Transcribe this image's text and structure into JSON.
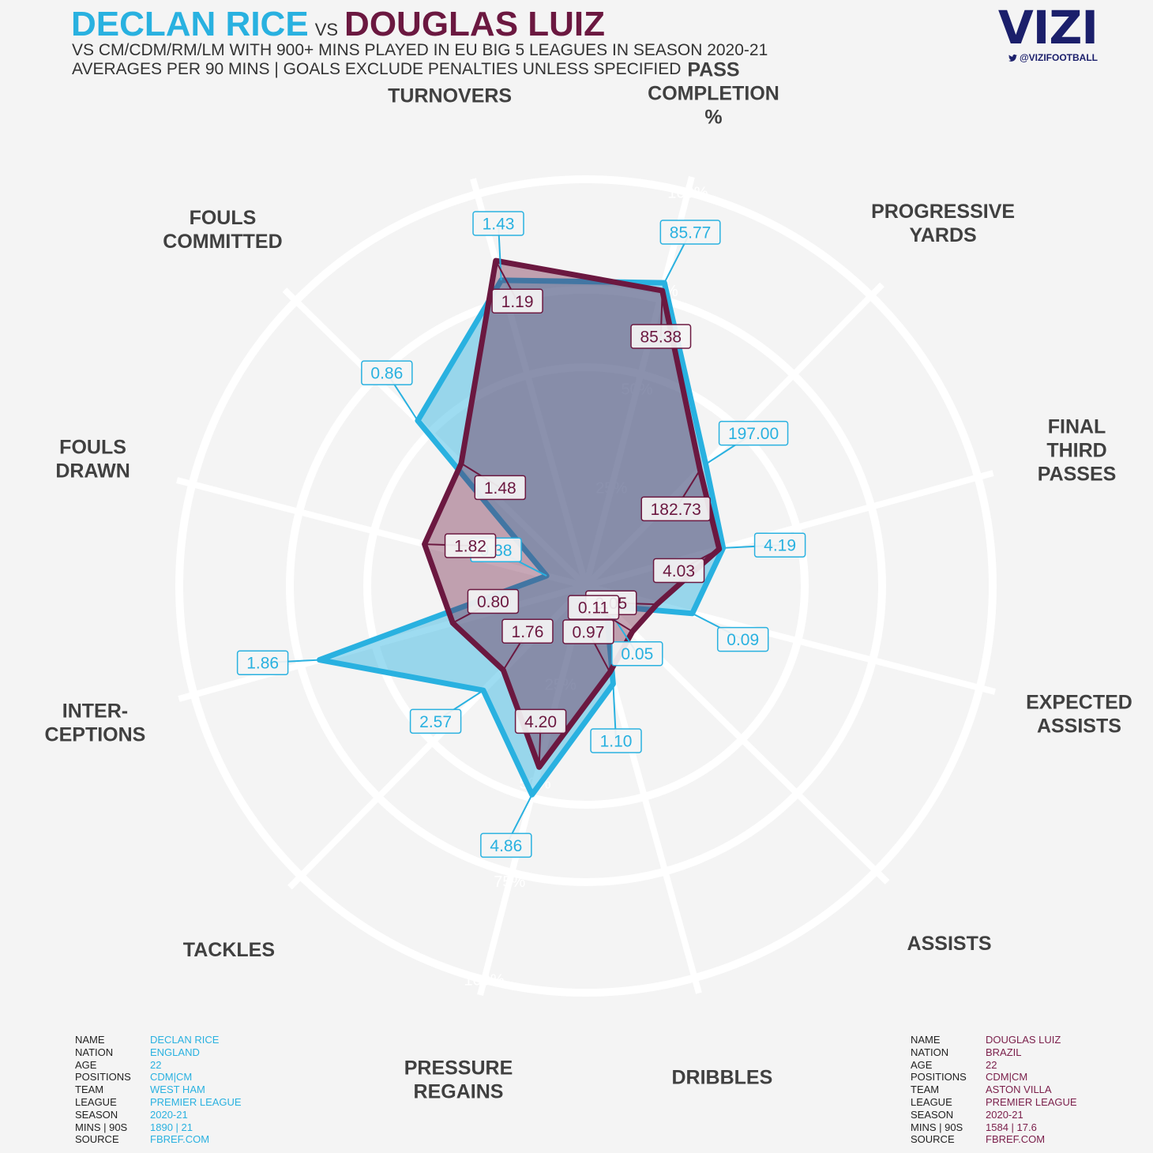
{
  "header": {
    "player1": "DECLAN RICE",
    "vs": "VS",
    "player2": "DOUGLAS LUIZ",
    "subtitle_line1": "VS CM/CDM/RM/LM WITH 900+ MINS PLAYED IN EU BIG 5 LEAGUES IN SEASON 2020-21",
    "subtitle_line2": "AVERAGES PER 90 MINS | GOALS EXCLUDE PENALTIES UNLESS SPECIFIED"
  },
  "logo": {
    "word": "VIZI",
    "handle": "@VIZIFOOTBALL",
    "icon": "twitter-bird-icon"
  },
  "colors": {
    "rice": "#29b1e0",
    "luiz": "#6b1840",
    "background": "#f4f4f4",
    "rings": "#ffffff"
  },
  "chart_data": {
    "type": "radar",
    "scale": "percentile",
    "ring_ticks": [
      "0%",
      "25%",
      "50%",
      "75%",
      "100%"
    ],
    "axes": [
      [
        "PASS",
        "COMPLETION",
        "%"
      ],
      [
        "PROGRESSIVE",
        "YARDS"
      ],
      [
        "FINAL",
        "THIRD",
        "PASSES"
      ],
      [
        "EXPECTED",
        "ASSISTS"
      ],
      [
        "ASSISTS"
      ],
      [
        "DRIBBLES"
      ],
      [
        "PRESSURE",
        "REGAINS"
      ],
      [
        "TACKLES"
      ],
      [
        "INTER-",
        "CEPTIONS"
      ],
      [
        "FOULS",
        "DRAWN"
      ],
      [
        "FOULS",
        "COMMITTED"
      ],
      [
        "TURNOVERS"
      ]
    ],
    "series": [
      {
        "name": "DECLAN RICE",
        "color": "#29b1e0",
        "values": [
          "85.77",
          "197.00",
          "4.19",
          "0.09",
          "0.05",
          "1.10",
          "4.86",
          "2.57",
          "1.86",
          "0.38",
          "0.86",
          "1.43"
        ],
        "percentiles": [
          77,
          42,
          35,
          27,
          7,
          25,
          53,
          36,
          68,
          10,
          58,
          78
        ]
      },
      {
        "name": "DOUGLAS LUIZ",
        "color": "#6b1840",
        "values": [
          "85.38",
          "182.73",
          "4.03",
          "0.05",
          "0.11",
          "0.97",
          "4.20",
          "1.76",
          "0.80",
          "1.82",
          "1.48",
          "1.19"
        ],
        "percentiles": [
          75,
          40,
          34,
          18,
          16,
          22,
          46,
          29,
          34,
          41,
          43,
          83
        ]
      }
    ]
  },
  "players": {
    "rice": {
      "keys": [
        "NAME",
        "NATION",
        "AGE",
        "POSITIONS",
        "TEAM",
        "LEAGUE",
        "SEASON",
        "MINS | 90S",
        "SOURCE"
      ],
      "values": [
        "DECLAN RICE",
        "ENGLAND",
        "22",
        "CDM|CM",
        "WEST HAM",
        "PREMIER LEAGUE",
        "2020-21",
        "1890 | 21",
        "FBREF.COM"
      ]
    },
    "luiz": {
      "keys": [
        "NAME",
        "NATION",
        "AGE",
        "POSITIONS",
        "TEAM",
        "LEAGUE",
        "SEASON",
        "MINS | 90S",
        "SOURCE"
      ],
      "values": [
        "DOUGLAS LUIZ",
        "BRAZIL",
        "22",
        "CDM|CM",
        "ASTON VILLA",
        "PREMIER LEAGUE",
        "2020-21",
        "1584 | 17.6",
        "FBREF.COM"
      ]
    }
  }
}
